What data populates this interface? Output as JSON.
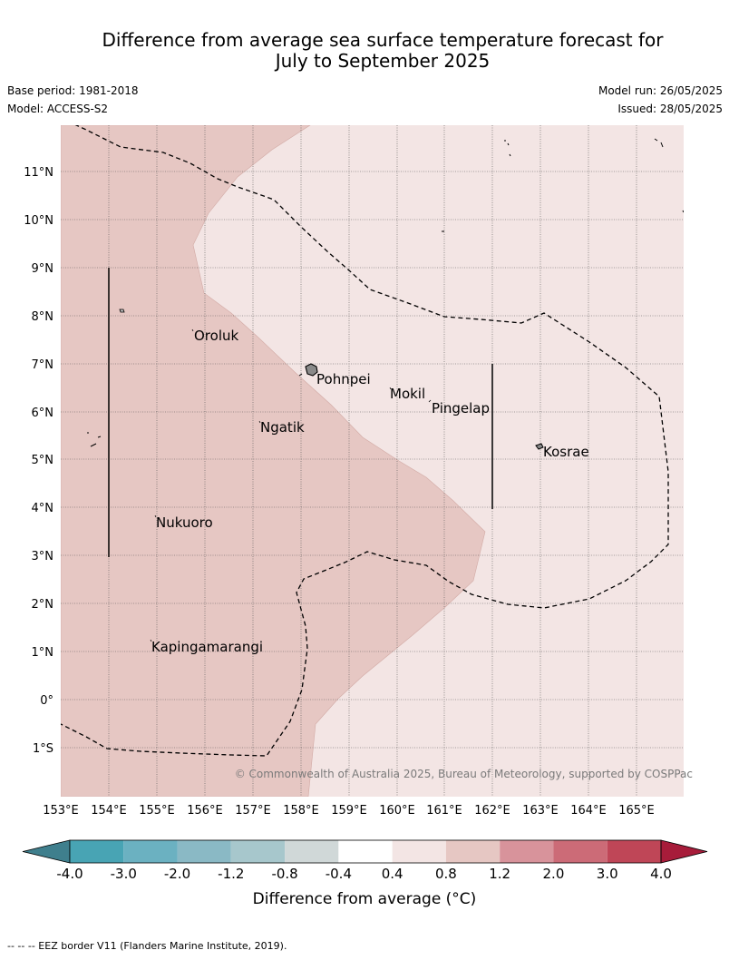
{
  "title": {
    "line1": "Difference from average sea surface temperature forecast for",
    "line2": "July to September 2025"
  },
  "meta": {
    "base_period": "Base period: 1981-2018",
    "model": "Model: ACCESS-S2",
    "model_run": "Model run: 26/05/2025",
    "issued": "Issued: 28/05/2025"
  },
  "map": {
    "lon_ticks": [
      "153°E",
      "154°E",
      "155°E",
      "156°E",
      "157°E",
      "158°E",
      "159°E",
      "160°E",
      "161°E",
      "162°E",
      "163°E",
      "164°E",
      "165°E"
    ],
    "lat_ticks": [
      "11°N",
      "10°N",
      "9°N",
      "8°N",
      "7°N",
      "6°N",
      "5°N",
      "4°N",
      "3°N",
      "2°N",
      "1°N",
      "0°",
      "1°S"
    ],
    "places": [
      {
        "name": "Oroluk",
        "lon": 155.8,
        "lat": 7.6
      },
      {
        "name": "Pohnpei",
        "lon": 158.3,
        "lat": 6.9
      },
      {
        "name": "Mokil",
        "lon": 159.8,
        "lat": 6.7
      },
      {
        "name": "Pingelap",
        "lon": 160.7,
        "lat": 6.2
      },
      {
        "name": "Ngatik",
        "lon": 157.1,
        "lat": 5.8
      },
      {
        "name": "Kosrae",
        "lon": 163.0,
        "lat": 5.3
      },
      {
        "name": "Nukuoro",
        "lon": 155.0,
        "lat": 3.9
      },
      {
        "name": "Kapingamarangi",
        "lon": 154.8,
        "lat": 1.1
      }
    ],
    "copyright": "© Commonwealth of Australia 2025, Bureau of Meteorology, supported by COSPPac"
  },
  "colorbar": {
    "ticks": [
      "-4.0",
      "-3.0",
      "-2.0",
      "-1.2",
      "-0.8",
      "-0.4",
      "0.4",
      "0.8",
      "1.2",
      "2.0",
      "3.0",
      "4.0"
    ],
    "colors": [
      "#3f7f8d",
      "#48a4b4",
      "#6bb1c1",
      "#8ab9c5",
      "#a7c7cc",
      "#d0d8d8",
      "#ffffff",
      "#f3e5e4",
      "#e6c7c3",
      "#d8939b",
      "#cc6b77",
      "#bf4657",
      "#a71c3a"
    ],
    "label": "Difference from average (°C)"
  },
  "footnote": "--  --  -- EEZ border V11 (Flanders Marine Institute, 2019)."
}
